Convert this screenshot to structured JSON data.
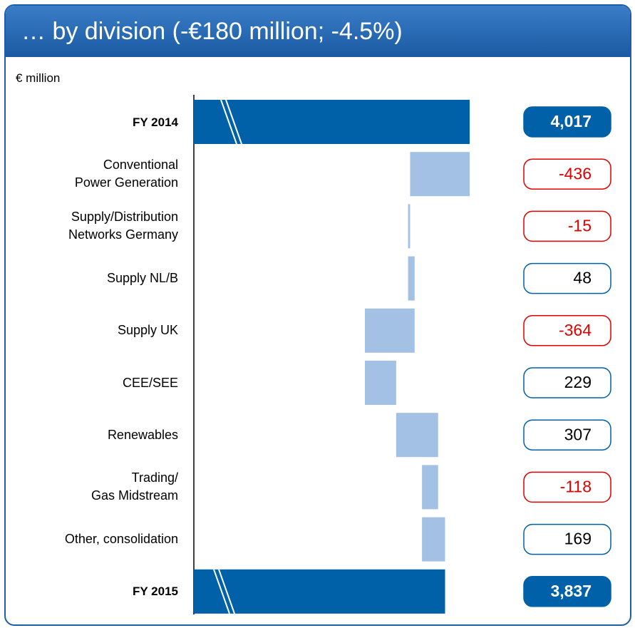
{
  "chart_data": {
    "type": "waterfall",
    "title": "… by division (-€180 million; -4.5%)",
    "unit": "€ million",
    "categories": [
      "FY 2014",
      "Conventional\nPower Generation",
      "Supply/Distribution\nNetworks Germany",
      "Supply NL/B",
      "Supply UK",
      "CEE/SEE",
      "Renewables",
      "Trading/\nGas Midstream",
      "Other, consolidation",
      "FY 2015"
    ],
    "values": [
      4017,
      -436,
      -15,
      48,
      -364,
      229,
      307,
      -118,
      169,
      3837
    ],
    "value_labels": [
      "4,017",
      "-436",
      "-15",
      "48",
      "-364",
      "229",
      "307",
      "-118",
      "169",
      "3,837"
    ],
    "total_color": "#0060a8",
    "delta_color": "#a3c1e4",
    "negative_color": "#e00000"
  }
}
